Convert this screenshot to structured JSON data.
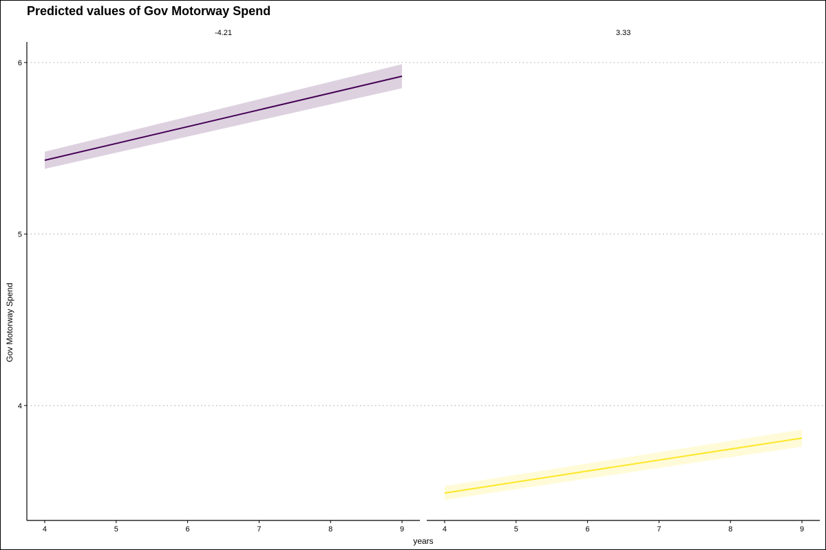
{
  "chart_data": {
    "type": "line",
    "title": "Predicted values of Gov Motorway Spend",
    "xlabel": "years",
    "ylabel": "Gov Motorway Spend",
    "xlim": [
      3.75,
      9.25
    ],
    "ylim": [
      3.33,
      6.12
    ],
    "x_ticks": [
      4,
      5,
      6,
      7,
      8,
      9
    ],
    "y_ticks": [
      4,
      5,
      6
    ],
    "grid": "horizontal dotted at y ticks",
    "panels": [
      {
        "label": "-4.21",
        "color": "#440154",
        "x": [
          4,
          9
        ],
        "y": [
          5.43,
          5.92
        ],
        "ci_low": [
          5.38,
          5.85
        ],
        "ci_high": [
          5.48,
          5.99
        ]
      },
      {
        "label": "3.33",
        "color": "#FDE725",
        "x": [
          4,
          9
        ],
        "y": [
          3.49,
          3.81
        ],
        "ci_low": [
          3.45,
          3.76
        ],
        "ci_high": [
          3.53,
          3.86
        ]
      }
    ]
  }
}
